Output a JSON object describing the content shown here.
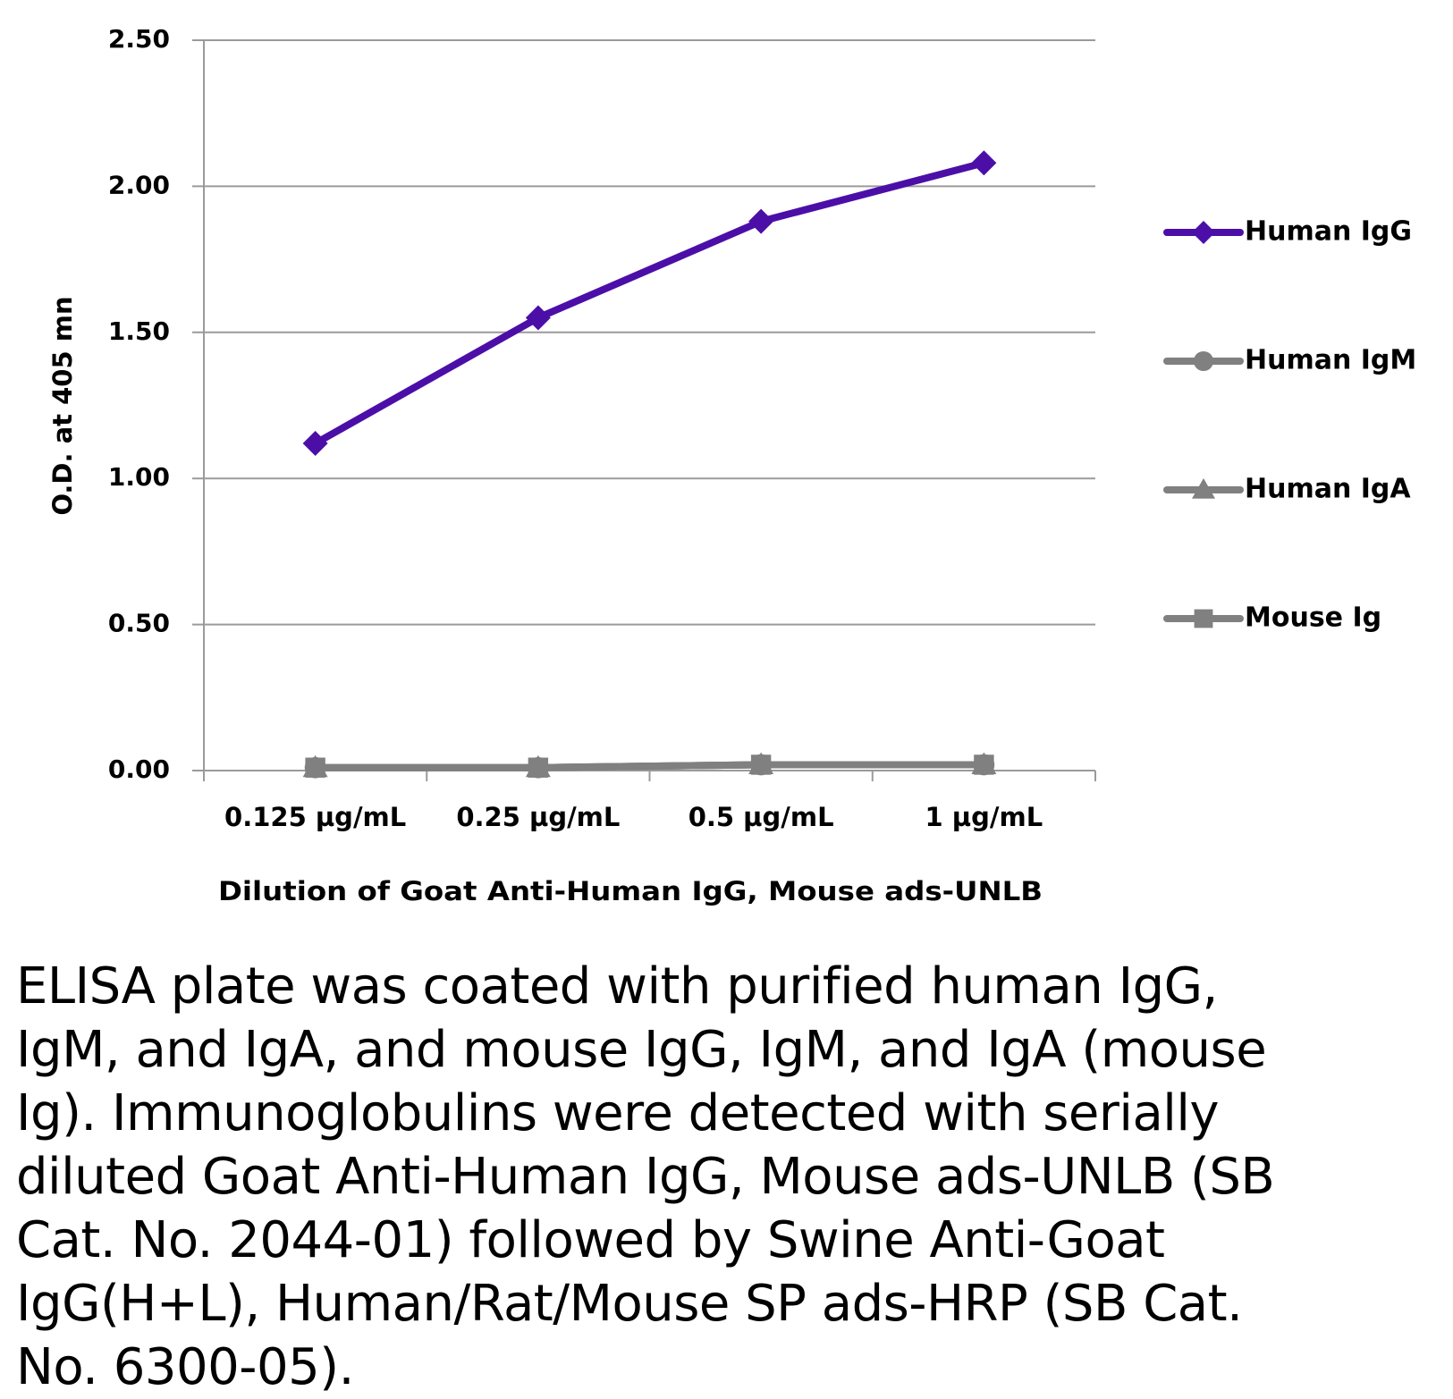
{
  "chart_data": {
    "type": "line",
    "title": "",
    "xlabel": "Dilution of Goat Anti-Human IgG, Mouse ads-UNLB",
    "ylabel": "O.D. at 405 mn",
    "categories": [
      "0.125 µg/mL",
      "0.25 µg/mL",
      "0.5 µg/mL",
      "1 µg/mL"
    ],
    "ylim": [
      0,
      2.5
    ],
    "yticks": [
      "0.00",
      "0.50",
      "1.00",
      "1.50",
      "2.00",
      "2.50"
    ],
    "ytick_values": [
      0,
      0.5,
      1.0,
      1.5,
      2.0,
      2.5
    ],
    "grid": true,
    "legend_position": "right",
    "series": [
      {
        "name": "Human IgG",
        "marker": "diamond",
        "color": "#4B0FA8",
        "values": [
          1.12,
          1.55,
          1.88,
          2.08
        ]
      },
      {
        "name": "Human IgM",
        "marker": "circle",
        "color": "#808080",
        "values": [
          0.01,
          0.01,
          0.02,
          0.02
        ]
      },
      {
        "name": "Human IgA",
        "marker": "triangle",
        "color": "#808080",
        "values": [
          0.01,
          0.01,
          0.02,
          0.02
        ]
      },
      {
        "name": "Mouse Ig",
        "marker": "square",
        "color": "#808080",
        "values": [
          0.01,
          0.01,
          0.02,
          0.02
        ]
      }
    ]
  },
  "caption": "ELISA plate was coated with purified human IgG, IgM, and IgA, and mouse IgG, IgM, and IgA (mouse Ig).  Immunoglobulins were detected with serially diluted Goat Anti-Human IgG, Mouse ads-UNLB (SB Cat. No. 2044-01) followed by Swine Anti-Goat IgG(H+L), Human/Rat/Mouse SP ads-HRP (SB Cat. No. 6300-05)."
}
